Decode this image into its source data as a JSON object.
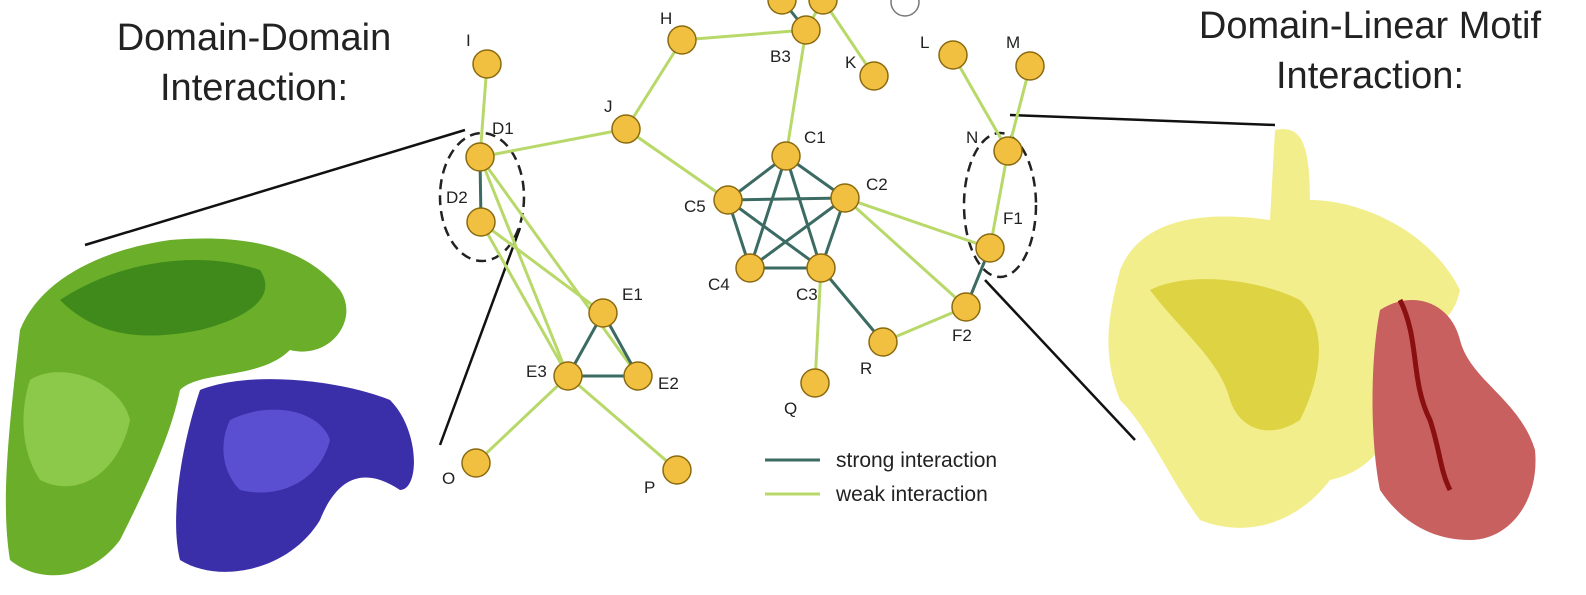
{
  "left_title": {
    "lines": [
      "Domain-Domain",
      "Interaction:"
    ]
  },
  "right_title": {
    "lines": [
      "Domain-Linear Motif",
      "Interaction:"
    ]
  },
  "nodes": [
    {
      "label": "H"
    },
    {
      "label": "B3"
    },
    {
      "label": "K"
    },
    {
      "label": "I"
    },
    {
      "label": "L"
    },
    {
      "label": "M"
    },
    {
      "label": "J"
    },
    {
      "label": "D1"
    },
    {
      "label": "D2"
    },
    {
      "label": "C1"
    },
    {
      "label": "C2"
    },
    {
      "label": "C5"
    },
    {
      "label": "C4"
    },
    {
      "label": "C3"
    },
    {
      "label": "N"
    },
    {
      "label": "F1"
    },
    {
      "label": "F2"
    },
    {
      "label": "E1"
    },
    {
      "label": "E2"
    },
    {
      "label": "E3"
    },
    {
      "label": "R"
    },
    {
      "label": "Q"
    },
    {
      "label": "O"
    },
    {
      "label": "P"
    }
  ],
  "legend": [
    {
      "label": "strong interaction"
    },
    {
      "label": "weak interaction"
    }
  ]
}
